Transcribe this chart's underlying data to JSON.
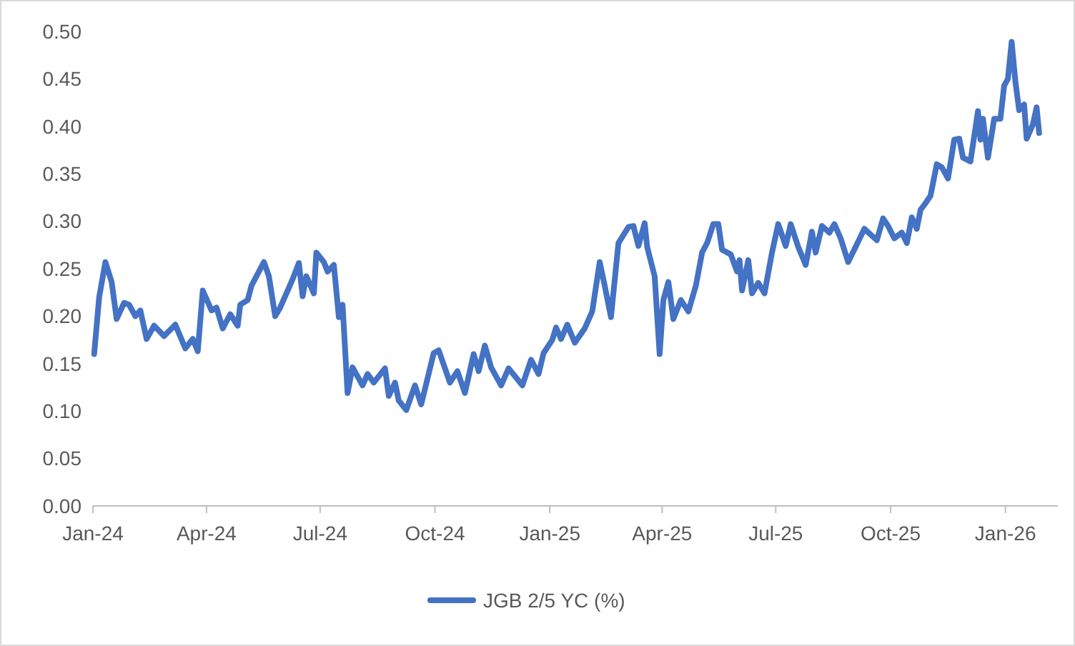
{
  "chart_data": {
    "type": "line",
    "x": [
      "2024-01-02",
      "2024-01-06",
      "2024-01-11",
      "2024-01-16",
      "2024-01-20",
      "2024-01-26",
      "2024-01-30",
      "2024-02-04",
      "2024-02-08",
      "2024-02-13",
      "2024-02-19",
      "2024-02-27",
      "2024-03-07",
      "2024-03-15",
      "2024-03-21",
      "2024-03-25",
      "2024-03-29",
      "2024-04-05",
      "2024-04-09",
      "2024-04-14",
      "2024-04-20",
      "2024-04-26",
      "2024-04-28",
      "2024-05-04",
      "2024-05-07",
      "2024-05-17",
      "2024-05-21",
      "2024-05-26",
      "2024-05-30",
      "2024-06-05",
      "2024-06-09",
      "2024-06-14",
      "2024-06-17",
      "2024-06-20",
      "2024-06-26",
      "2024-06-28",
      "2024-07-04",
      "2024-07-07",
      "2024-07-12",
      "2024-07-16",
      "2024-07-19",
      "2024-07-23",
      "2024-07-27",
      "2024-08-04",
      "2024-08-08",
      "2024-08-13",
      "2024-08-22",
      "2024-08-25",
      "2024-08-30",
      "2024-09-02",
      "2024-09-08",
      "2024-09-15",
      "2024-09-20",
      "2024-09-30",
      "2024-10-04",
      "2024-10-13",
      "2024-10-19",
      "2024-10-25",
      "2024-11-01",
      "2024-11-05",
      "2024-11-10",
      "2024-11-15",
      "2024-11-23",
      "2024-11-29",
      "2024-12-10",
      "2024-12-17",
      "2024-12-23",
      "2024-12-27",
      "2025-01-03",
      "2025-01-06",
      "2025-01-10",
      "2025-01-15",
      "2025-01-21",
      "2025-01-29",
      "2025-02-04",
      "2025-02-10",
      "2025-02-14",
      "2025-02-19",
      "2025-02-25",
      "2025-03-05",
      "2025-03-09",
      "2025-03-13",
      "2025-03-18",
      "2025-03-20",
      "2025-03-26",
      "2025-03-30",
      "2025-04-02",
      "2025-04-06",
      "2025-04-10",
      "2025-04-16",
      "2025-04-22",
      "2025-04-28",
      "2025-05-03",
      "2025-05-07",
      "2025-05-12",
      "2025-05-16",
      "2025-05-19",
      "2025-05-26",
      "2025-05-31",
      "2025-06-02",
      "2025-06-04",
      "2025-06-09",
      "2025-06-12",
      "2025-06-17",
      "2025-06-22",
      "2025-06-28",
      "2025-07-03",
      "2025-07-09",
      "2025-07-13",
      "2025-07-19",
      "2025-07-25",
      "2025-07-30",
      "2025-08-02",
      "2025-08-07",
      "2025-08-13",
      "2025-08-17",
      "2025-08-22",
      "2025-08-28",
      "2025-09-03",
      "2025-09-10",
      "2025-09-20",
      "2025-09-25",
      "2025-09-29",
      "2025-10-04",
      "2025-10-10",
      "2025-10-14",
      "2025-10-18",
      "2025-10-22",
      "2025-10-25",
      "2025-10-29",
      "2025-11-02",
      "2025-11-07",
      "2025-11-11",
      "2025-11-16",
      "2025-11-21",
      "2025-11-25",
      "2025-11-28",
      "2025-12-04",
      "2025-12-10",
      "2025-12-12",
      "2025-12-14",
      "2025-12-18",
      "2025-12-23",
      "2025-12-28",
      "2025-12-31",
      "2026-01-03",
      "2026-01-06",
      "2026-01-09",
      "2026-01-12",
      "2026-01-16",
      "2026-01-18",
      "2026-01-23",
      "2026-01-26",
      "2026-01-28"
    ],
    "series": [
      {
        "name": "JGB 2/5 YC (%)",
        "color": "#4472c4",
        "values": [
          0.16,
          0.22,
          0.257,
          0.236,
          0.197,
          0.214,
          0.212,
          0.2,
          0.206,
          0.176,
          0.19,
          0.179,
          0.191,
          0.166,
          0.176,
          0.163,
          0.227,
          0.206,
          0.209,
          0.187,
          0.202,
          0.19,
          0.212,
          0.217,
          0.232,
          0.257,
          0.242,
          0.2,
          0.209,
          0.227,
          0.239,
          0.256,
          0.221,
          0.242,
          0.224,
          0.267,
          0.257,
          0.247,
          0.254,
          0.199,
          0.212,
          0.119,
          0.146,
          0.127,
          0.139,
          0.13,
          0.145,
          0.116,
          0.13,
          0.111,
          0.101,
          0.127,
          0.107,
          0.161,
          0.164,
          0.13,
          0.142,
          0.119,
          0.16,
          0.142,
          0.169,
          0.146,
          0.127,
          0.145,
          0.127,
          0.154,
          0.139,
          0.161,
          0.175,
          0.188,
          0.176,
          0.191,
          0.172,
          0.187,
          0.205,
          0.257,
          0.232,
          0.199,
          0.277,
          0.294,
          0.295,
          0.274,
          0.298,
          0.273,
          0.242,
          0.16,
          0.217,
          0.236,
          0.197,
          0.217,
          0.205,
          0.232,
          0.267,
          0.277,
          0.297,
          0.297,
          0.27,
          0.265,
          0.247,
          0.259,
          0.227,
          0.259,
          0.224,
          0.235,
          0.224,
          0.267,
          0.297,
          0.274,
          0.297,
          0.273,
          0.254,
          0.289,
          0.267,
          0.295,
          0.288,
          0.297,
          0.282,
          0.257,
          0.273,
          0.292,
          0.28,
          0.303,
          0.295,
          0.282,
          0.288,
          0.277,
          0.304,
          0.292,
          0.312,
          0.319,
          0.327,
          0.36,
          0.357,
          0.345,
          0.386,
          0.387,
          0.367,
          0.363,
          0.416,
          0.386,
          0.408,
          0.367,
          0.408,
          0.408,
          0.443,
          0.45,
          0.489,
          0.447,
          0.417,
          0.423,
          0.387,
          0.402,
          0.42,
          0.393
        ]
      }
    ],
    "xlim": [
      "2024-01-01",
      "2026-02-12"
    ],
    "xticks": [
      {
        "value": "2024-01-01",
        "label": "Jan-24"
      },
      {
        "value": "2024-04-01",
        "label": "Apr-24"
      },
      {
        "value": "2024-07-01",
        "label": "Jul-24"
      },
      {
        "value": "2024-10-01",
        "label": "Oct-24"
      },
      {
        "value": "2025-01-01",
        "label": "Jan-25"
      },
      {
        "value": "2025-04-01",
        "label": "Apr-25"
      },
      {
        "value": "2025-07-01",
        "label": "Jul-25"
      },
      {
        "value": "2025-10-01",
        "label": "Oct-25"
      },
      {
        "value": "2026-01-01",
        "label": "Jan-26"
      }
    ],
    "ylim": [
      0,
      0.5
    ],
    "yticks": [
      {
        "value": 0,
        "label": "0.00"
      },
      {
        "value": 0.05,
        "label": "0.05"
      },
      {
        "value": 0.1,
        "label": "0.10"
      },
      {
        "value": 0.15,
        "label": "0.15"
      },
      {
        "value": 0.2,
        "label": "0.20"
      },
      {
        "value": 0.25,
        "label": "0.25"
      },
      {
        "value": 0.3,
        "label": "0.30"
      },
      {
        "value": 0.35,
        "label": "0.35"
      },
      {
        "value": 0.4,
        "label": "0.40"
      },
      {
        "value": 0.45,
        "label": "0.45"
      },
      {
        "value": 0.5,
        "label": "0.50"
      }
    ],
    "grid": false,
    "legend": "bottom",
    "line_style": "solid",
    "marker": "none"
  }
}
